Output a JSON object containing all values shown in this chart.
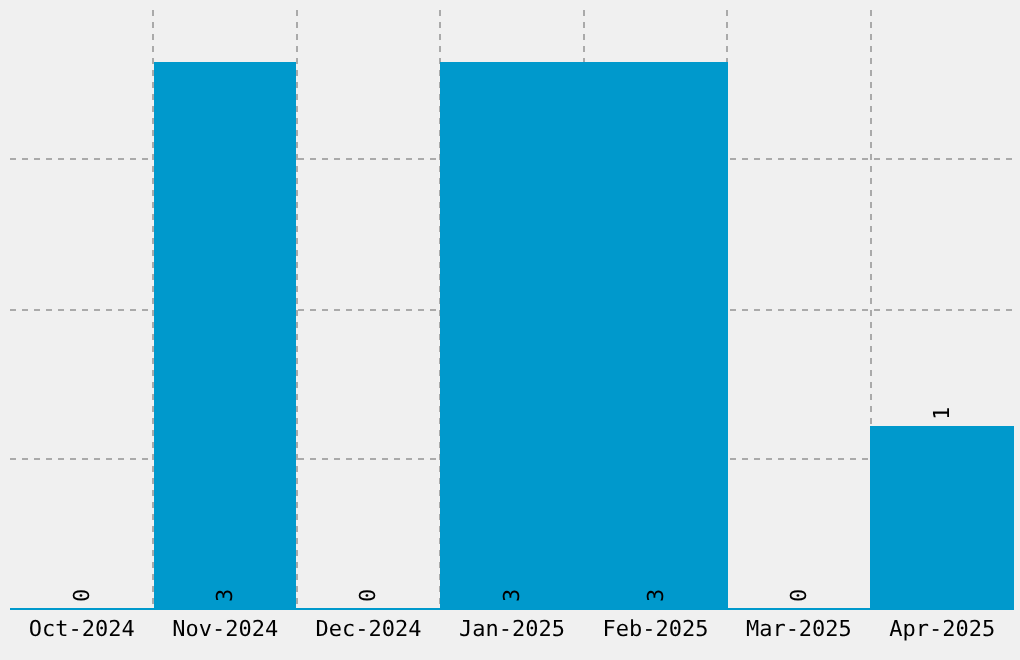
{
  "chart_data": {
    "type": "bar",
    "categories": [
      "Oct-2024",
      "Nov-2024",
      "Dec-2024",
      "Jan-2025",
      "Feb-2025",
      "Mar-2025",
      "Apr-2025"
    ],
    "values": [
      0,
      3,
      0,
      3,
      3,
      0,
      1
    ],
    "color": "#0099cc",
    "data_labels": true,
    "grid": true,
    "tick_labels": "x",
    "ylim": [
      0,
      3.29
    ],
    "yticks": [
      {
        "value": 0,
        "label": null
      },
      {
        "value": 0.82,
        "label": null
      },
      {
        "value": 1.64,
        "label": null
      },
      {
        "value": 2.47,
        "label": null
      }
    ]
  }
}
